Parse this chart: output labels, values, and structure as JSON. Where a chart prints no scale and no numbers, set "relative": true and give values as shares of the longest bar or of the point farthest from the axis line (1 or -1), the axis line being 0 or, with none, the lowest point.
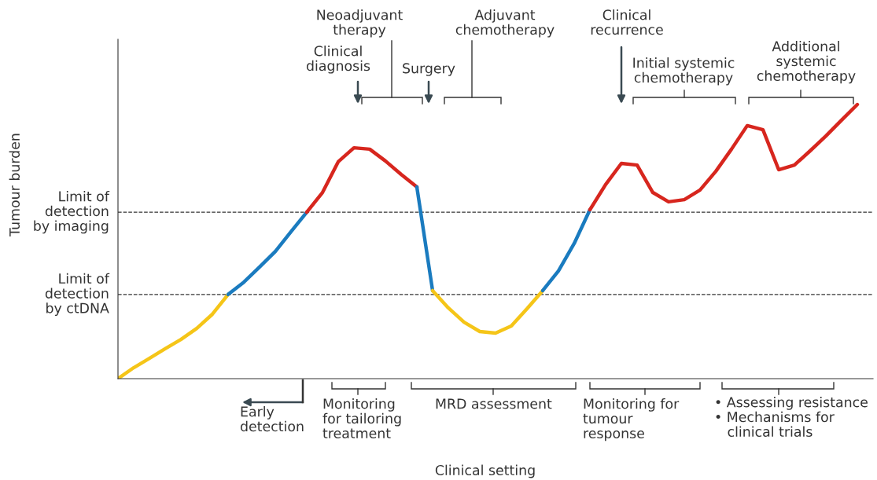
{
  "chart_data": {
    "type": "line",
    "relative": true,
    "legend": false,
    "marker": "none",
    "line_style": "solid",
    "categories": [
      null,
      null,
      null,
      null,
      null,
      null,
      null,
      null,
      null,
      null,
      null,
      null,
      null,
      null,
      null,
      null,
      null,
      null,
      null,
      null,
      null,
      null,
      null,
      null,
      null,
      null,
      null,
      null,
      null,
      null,
      null,
      null,
      null,
      null,
      null,
      null,
      null,
      null,
      null,
      null,
      null,
      null,
      null,
      null,
      null,
      null,
      null,
      null
    ],
    "series": [
      {
        "color": "#f5c518",
        "values": [
          0,
          0.04,
          0.074,
          0.109,
          0.143,
          0.183,
          0.235,
          0.307,
          null,
          null,
          null,
          null,
          null,
          null,
          null,
          null,
          null,
          null,
          null,
          null,
          null,
          null,
          null,
          null,
          null,
          null,
          null,
          null,
          null,
          null,
          null,
          null,
          null,
          null,
          null,
          null,
          null,
          null,
          null,
          null,
          null,
          null,
          null,
          null,
          null,
          null,
          null,
          null
        ]
      },
      {
        "color": "#1a7bbf",
        "values": [
          null,
          null,
          null,
          null,
          null,
          null,
          null,
          0.307,
          0.352,
          0.407,
          0.464,
          0.536,
          0.607,
          null,
          null,
          null,
          null,
          null,
          null,
          null,
          null,
          null,
          null,
          null,
          null,
          null,
          null,
          null,
          null,
          null,
          null,
          null,
          null,
          null,
          null,
          null,
          null,
          null,
          null,
          null,
          null,
          null,
          null,
          null,
          null,
          null,
          null,
          null
        ]
      },
      {
        "color": "#d7261e",
        "values": [
          null,
          null,
          null,
          null,
          null,
          null,
          null,
          null,
          null,
          null,
          null,
          null,
          0.607,
          0.679,
          0.791,
          0.842,
          0.837,
          0.794,
          0.745,
          0.699,
          null,
          null,
          null,
          null,
          null,
          null,
          null,
          null,
          null,
          null,
          null,
          null,
          null,
          null,
          null,
          null,
          null,
          null,
          null,
          null,
          null,
          null,
          null,
          null,
          null,
          null,
          null,
          null
        ]
      },
      {
        "color": "#1a7bbf",
        "values": [
          null,
          null,
          null,
          null,
          null,
          null,
          null,
          null,
          null,
          null,
          null,
          null,
          null,
          null,
          null,
          null,
          null,
          null,
          null,
          0.699,
          0.321,
          null,
          null,
          null,
          null,
          null,
          null,
          null,
          null,
          null,
          null,
          null,
          null,
          null,
          null,
          null,
          null,
          null,
          null,
          null,
          null,
          null,
          null,
          null,
          null,
          null,
          null,
          null
        ]
      },
      {
        "color": "#f5c518",
        "values": [
          null,
          null,
          null,
          null,
          null,
          null,
          null,
          null,
          null,
          null,
          null,
          null,
          null,
          null,
          null,
          null,
          null,
          null,
          null,
          null,
          0.321,
          0.258,
          0.206,
          0.172,
          0.166,
          0.192,
          0.255,
          0.321,
          null,
          null,
          null,
          null,
          null,
          null,
          null,
          null,
          null,
          null,
          null,
          null,
          null,
          null,
          null,
          null,
          null,
          null,
          null,
          null
        ]
      },
      {
        "color": "#1a7bbf",
        "values": [
          null,
          null,
          null,
          null,
          null,
          null,
          null,
          null,
          null,
          null,
          null,
          null,
          null,
          null,
          null,
          null,
          null,
          null,
          null,
          null,
          null,
          null,
          null,
          null,
          null,
          null,
          null,
          0.321,
          0.393,
          0.493,
          0.616,
          null,
          null,
          null,
          null,
          null,
          null,
          null,
          null,
          null,
          null,
          null,
          null,
          null,
          null,
          null,
          null,
          null
        ]
      },
      {
        "color": "#d7261e",
        "values": [
          null,
          null,
          null,
          null,
          null,
          null,
          null,
          null,
          null,
          null,
          null,
          null,
          null,
          null,
          null,
          null,
          null,
          null,
          null,
          null,
          null,
          null,
          null,
          null,
          null,
          null,
          null,
          null,
          null,
          null,
          0.616,
          0.708,
          0.785,
          0.779,
          0.679,
          0.645,
          0.653,
          0.688,
          0.756,
          0.837,
          0.923,
          0.908,
          0.762,
          0.779,
          0.831,
          0.885,
          0.943,
          1
        ]
      }
    ],
    "ref_lines": [
      {
        "axis": "y",
        "value": 0.607,
        "label": "Limit of\ndetection\nby imaging",
        "color": "#333333",
        "line_style": "dashed"
      },
      {
        "axis": "y",
        "value": 0.307,
        "label": "Limit of\ndetection\nby ctDNA",
        "color": "#333333",
        "line_style": "dashed"
      }
    ],
    "annotations": [
      "Neoadjuvant\ntherapy",
      "Adjuvant\nchemotherapy",
      "Clinical\ndiagnosis",
      "Surgery",
      "Clinical\nrecurrence",
      "Initial systemic\nchemotherapy",
      "Additional\nsystemic\nchemotherapy",
      "Early\ndetection",
      "Monitoring\nfor tailoring\ntreatment",
      "MRD assessment",
      "Monitoring for\ntumour\nresponse",
      "• Assessing resistance\n• Mechanisms for\n   clinical trials",
      "Tumour burden",
      "Clinical setting"
    ]
  }
}
